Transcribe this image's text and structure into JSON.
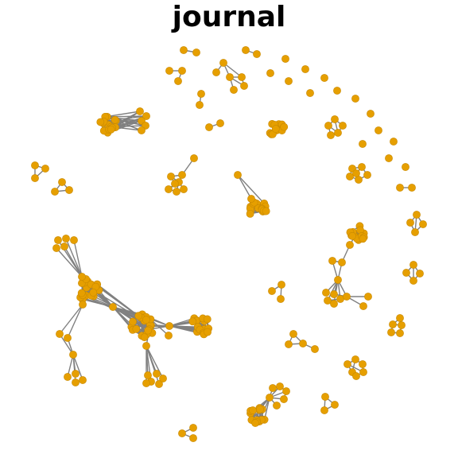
{
  "title": "journal",
  "colors": {
    "node": "#e69f00",
    "node_stroke": "#c98a00",
    "edge": "#808080",
    "background": "#ffffff"
  },
  "graph": {
    "directed": false,
    "node_labels_shown": false
  }
}
